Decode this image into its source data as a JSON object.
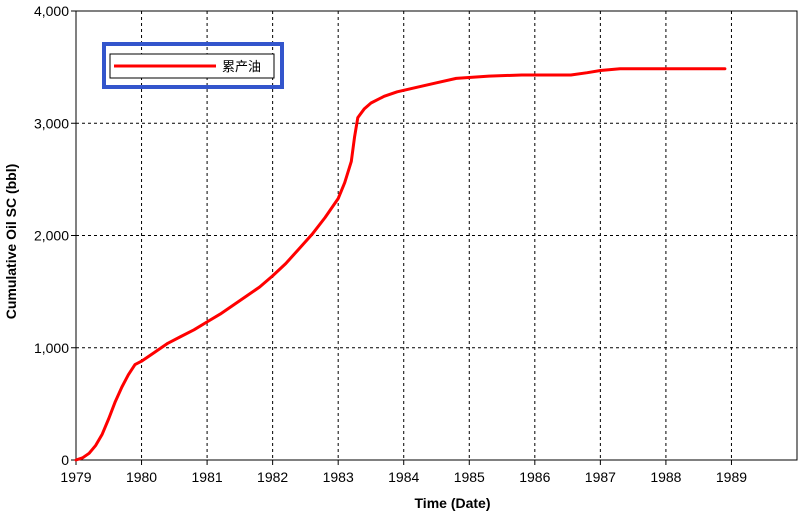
{
  "chart_data": {
    "type": "line",
    "xlabel": "Time (Date)",
    "ylabel": "Cumulative Oil SC (bbl)",
    "xlim": [
      1979,
      1990
    ],
    "ylim": [
      0,
      4000
    ],
    "x_ticks": [
      1979,
      1980,
      1981,
      1982,
      1983,
      1984,
      1985,
      1986,
      1987,
      1988,
      1989
    ],
    "x_tick_labels": [
      "1979",
      "1980",
      "1981",
      "1982",
      "1983",
      "1984",
      "1985",
      "1986",
      "1987",
      "1988",
      "1989"
    ],
    "y_ticks": [
      0,
      1000,
      2000,
      3000,
      4000
    ],
    "y_tick_labels": [
      "0",
      "1,000",
      "2,000",
      "3,000",
      "4,000"
    ],
    "grid": true,
    "legend_position": "top-left",
    "series": [
      {
        "name": "累产油",
        "color": "#ff0000",
        "x": [
          1979.0,
          1979.1,
          1979.2,
          1979.3,
          1979.4,
          1979.5,
          1979.6,
          1979.7,
          1979.8,
          1979.9,
          1980.0,
          1980.2,
          1980.4,
          1980.6,
          1980.8,
          1981.0,
          1981.2,
          1981.4,
          1981.6,
          1981.8,
          1982.0,
          1982.2,
          1982.4,
          1982.6,
          1982.8,
          1983.0,
          1983.1,
          1983.2,
          1983.25,
          1983.3,
          1983.4,
          1983.5,
          1983.7,
          1983.9,
          1984.2,
          1984.5,
          1984.8,
          1985.3,
          1985.8,
          1986.3,
          1986.55,
          1986.8,
          1987.0,
          1987.3,
          1987.8,
          1988.3,
          1988.9
        ],
        "y": [
          0,
          20,
          60,
          130,
          230,
          370,
          520,
          650,
          760,
          850,
          880,
          960,
          1040,
          1100,
          1160,
          1230,
          1300,
          1380,
          1460,
          1540,
          1640,
          1750,
          1880,
          2010,
          2160,
          2330,
          2470,
          2660,
          2880,
          3050,
          3130,
          3180,
          3240,
          3280,
          3320,
          3360,
          3400,
          3420,
          3430,
          3430,
          3430,
          3450,
          3470,
          3485,
          3485,
          3485,
          3485
        ]
      }
    ]
  },
  "colors": {
    "line": "#ff0000",
    "legend_border": "#3355cc",
    "grid": "#000000",
    "axis": "#000000"
  }
}
